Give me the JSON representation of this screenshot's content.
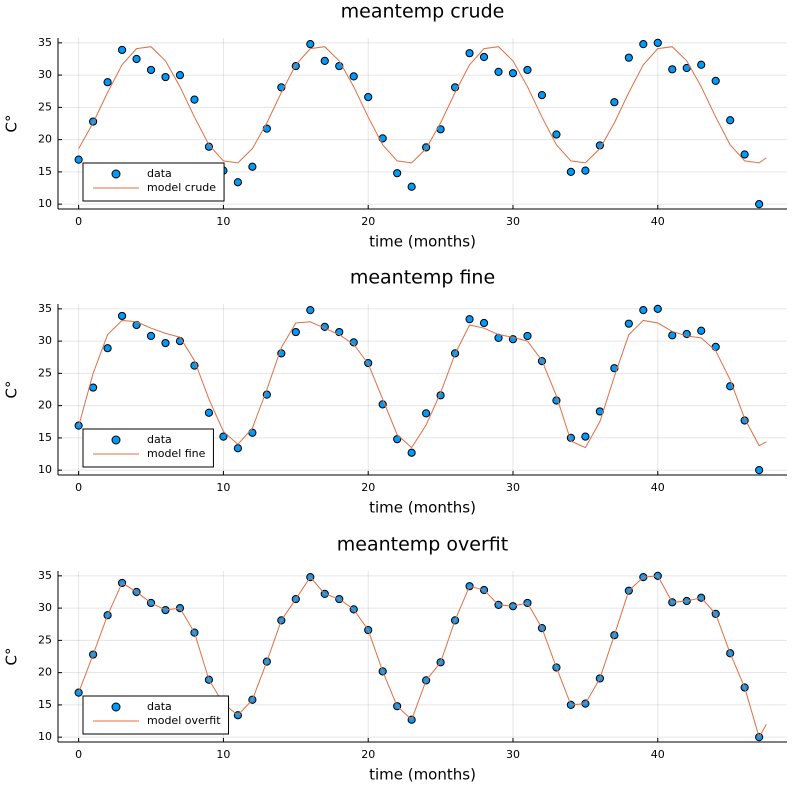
{
  "chart_data": [
    {
      "type": "scatter",
      "title": "meantemp crude",
      "x_label": "time (months)",
      "y_label": "C°",
      "xlim": [
        -1.425,
        48.925
      ],
      "ylim": [
        9.25,
        35.75
      ],
      "xticks": [
        0,
        10,
        20,
        30,
        40
      ],
      "yticks": [
        10,
        15,
        20,
        25,
        30,
        35
      ],
      "grid": true,
      "legend": "bottomleft",
      "series": [
        {
          "name": "data",
          "style": "markers",
          "color": "#009afa",
          "x": [
            0,
            1,
            2,
            3,
            4,
            5,
            6,
            7,
            8,
            9,
            10,
            11,
            12,
            13,
            14,
            15,
            16,
            17,
            18,
            19,
            20,
            21,
            22,
            23,
            24,
            25,
            26,
            27,
            28,
            29,
            30,
            31,
            32,
            33,
            34,
            35,
            36,
            37,
            38,
            39,
            40,
            41,
            42,
            43,
            44,
            45,
            46,
            47
          ],
          "values": [
            16.9,
            22.8,
            28.9,
            33.9,
            32.5,
            30.8,
            29.7,
            30.0,
            26.2,
            18.9,
            15.2,
            13.4,
            15.8,
            21.7,
            28.1,
            31.4,
            34.8,
            32.2,
            31.4,
            29.8,
            26.6,
            20.2,
            14.8,
            12.7,
            18.8,
            21.6,
            28.1,
            33.4,
            32.8,
            30.5,
            30.3,
            30.8,
            26.9,
            20.8,
            15.0,
            15.2,
            19.1,
            25.8,
            32.7,
            34.8,
            35.0,
            30.9,
            31.1,
            31.6,
            29.1,
            23.0,
            17.7,
            10.0
          ]
        },
        {
          "name": "model crude",
          "style": "line",
          "color": "#e26f46",
          "x": [
            0,
            1,
            2,
            3,
            4,
            5,
            6,
            7,
            8,
            9,
            10,
            11,
            12,
            13,
            14,
            15,
            16,
            17,
            18,
            19,
            20,
            21,
            22,
            23,
            24,
            25,
            26,
            27,
            28,
            29,
            30,
            31,
            32,
            33,
            34,
            35,
            36,
            37,
            38,
            39,
            40,
            41,
            42,
            43,
            44,
            45,
            46,
            47,
            47.5
          ],
          "values": [
            18.6,
            22.6,
            27.3,
            31.6,
            34.1,
            34.4,
            32.2,
            28.2,
            23.5,
            19.2,
            16.7,
            16.4,
            18.6,
            22.6,
            27.3,
            31.6,
            34.1,
            34.4,
            32.2,
            28.2,
            23.5,
            19.2,
            16.7,
            16.4,
            18.6,
            22.6,
            27.3,
            31.6,
            34.1,
            34.4,
            32.2,
            28.2,
            23.5,
            19.2,
            16.7,
            16.4,
            18.6,
            22.6,
            27.3,
            31.6,
            34.1,
            34.4,
            32.2,
            28.2,
            23.5,
            19.2,
            16.7,
            16.4,
            17.2
          ]
        }
      ]
    },
    {
      "type": "scatter",
      "title": "meantemp fine",
      "x_label": "time (months)",
      "y_label": "C°",
      "xlim": [
        -1.425,
        48.925
      ],
      "ylim": [
        9.25,
        35.75
      ],
      "xticks": [
        0,
        10,
        20,
        30,
        40
      ],
      "yticks": [
        10,
        15,
        20,
        25,
        30,
        35
      ],
      "grid": true,
      "legend": "bottomleft",
      "series": [
        {
          "name": "data",
          "style": "markers",
          "color": "#009afa",
          "x": [
            0,
            1,
            2,
            3,
            4,
            5,
            6,
            7,
            8,
            9,
            10,
            11,
            12,
            13,
            14,
            15,
            16,
            17,
            18,
            19,
            20,
            21,
            22,
            23,
            24,
            25,
            26,
            27,
            28,
            29,
            30,
            31,
            32,
            33,
            34,
            35,
            36,
            37,
            38,
            39,
            40,
            41,
            42,
            43,
            44,
            45,
            46,
            47
          ],
          "values": [
            16.9,
            22.8,
            28.9,
            33.9,
            32.5,
            30.8,
            29.7,
            30.0,
            26.2,
            18.9,
            15.2,
            13.4,
            15.8,
            21.7,
            28.1,
            31.4,
            34.8,
            32.2,
            31.4,
            29.8,
            26.6,
            20.2,
            14.8,
            12.7,
            18.8,
            21.6,
            28.1,
            33.4,
            32.8,
            30.5,
            30.3,
            30.8,
            26.9,
            20.8,
            15.0,
            15.2,
            19.1,
            25.8,
            32.7,
            34.8,
            35.0,
            30.9,
            31.1,
            31.6,
            29.1,
            23.0,
            17.7,
            10.0
          ]
        },
        {
          "name": "model fine",
          "style": "line",
          "color": "#e26f46",
          "x": [
            0,
            1,
            2,
            3,
            4,
            5,
            6,
            7,
            8,
            9,
            10,
            11,
            12,
            13,
            14,
            15,
            16,
            17,
            18,
            19,
            20,
            21,
            22,
            23,
            24,
            25,
            26,
            27,
            28,
            29,
            30,
            31,
            32,
            33,
            34,
            35,
            36,
            37,
            38,
            39,
            40,
            41,
            42,
            43,
            44,
            45,
            46,
            47,
            47.5
          ],
          "values": [
            16.8,
            25,
            31,
            33.2,
            33,
            32,
            31.2,
            30.6,
            27,
            21,
            16,
            14,
            16.5,
            22.5,
            29,
            32.8,
            33,
            32,
            31,
            29.5,
            26.5,
            21,
            15.5,
            13.5,
            17,
            22,
            28,
            32.5,
            32,
            31,
            30.6,
            30,
            27,
            21.5,
            14.5,
            13.5,
            17.5,
            24.5,
            31,
            33.2,
            32.8,
            31.5,
            30.8,
            30.5,
            28.5,
            24,
            18,
            13.8,
            14.4
          ]
        }
      ]
    },
    {
      "type": "scatter",
      "title": "meantemp overfit",
      "x_label": "time (months)",
      "y_label": "C°",
      "xlim": [
        -1.425,
        48.925
      ],
      "ylim": [
        9.25,
        35.75
      ],
      "xticks": [
        0,
        10,
        20,
        30,
        40
      ],
      "yticks": [
        10,
        15,
        20,
        25,
        30,
        35
      ],
      "grid": true,
      "legend": "bottomleft",
      "series": [
        {
          "name": "data",
          "style": "markers",
          "color": "#009afa",
          "x": [
            0,
            1,
            2,
            3,
            4,
            5,
            6,
            7,
            8,
            9,
            10,
            11,
            12,
            13,
            14,
            15,
            16,
            17,
            18,
            19,
            20,
            21,
            22,
            23,
            24,
            25,
            26,
            27,
            28,
            29,
            30,
            31,
            32,
            33,
            34,
            35,
            36,
            37,
            38,
            39,
            40,
            41,
            42,
            43,
            44,
            45,
            46,
            47
          ],
          "values": [
            16.9,
            22.8,
            28.9,
            33.9,
            32.5,
            30.8,
            29.7,
            30.0,
            26.2,
            18.9,
            15.2,
            13.4,
            15.8,
            21.7,
            28.1,
            31.4,
            34.8,
            32.2,
            31.4,
            29.8,
            26.6,
            20.2,
            14.8,
            12.7,
            18.8,
            21.6,
            28.1,
            33.4,
            32.8,
            30.5,
            30.3,
            30.8,
            26.9,
            20.8,
            15.0,
            15.2,
            19.1,
            25.8,
            32.7,
            34.8,
            35.0,
            30.9,
            31.1,
            31.6,
            29.1,
            23.0,
            17.7,
            10.0
          ]
        },
        {
          "name": "model overfit",
          "style": "line",
          "color": "#e26f46",
          "x": [
            0,
            1,
            2,
            3,
            4,
            5,
            6,
            7,
            8,
            9,
            10,
            11,
            12,
            13,
            14,
            15,
            16,
            17,
            18,
            19,
            20,
            21,
            22,
            23,
            24,
            25,
            26,
            27,
            28,
            29,
            30,
            31,
            32,
            33,
            34,
            35,
            36,
            37,
            38,
            39,
            40,
            41,
            42,
            43,
            44,
            45,
            46,
            47,
            47.5
          ],
          "values": [
            16.9,
            22.8,
            28.9,
            33.9,
            32.5,
            30.8,
            29.7,
            30.0,
            26.2,
            18.9,
            15.2,
            13.4,
            15.8,
            21.7,
            28.1,
            31.4,
            34.8,
            32.2,
            31.4,
            29.8,
            26.6,
            20.2,
            14.8,
            12.7,
            18.8,
            21.6,
            28.1,
            33.4,
            32.8,
            30.5,
            30.3,
            30.8,
            26.9,
            20.8,
            15.0,
            15.2,
            19.1,
            25.8,
            32.7,
            34.8,
            35.0,
            30.9,
            31.1,
            31.6,
            29.1,
            23.0,
            17.7,
            10.0,
            12.0
          ]
        }
      ]
    }
  ]
}
